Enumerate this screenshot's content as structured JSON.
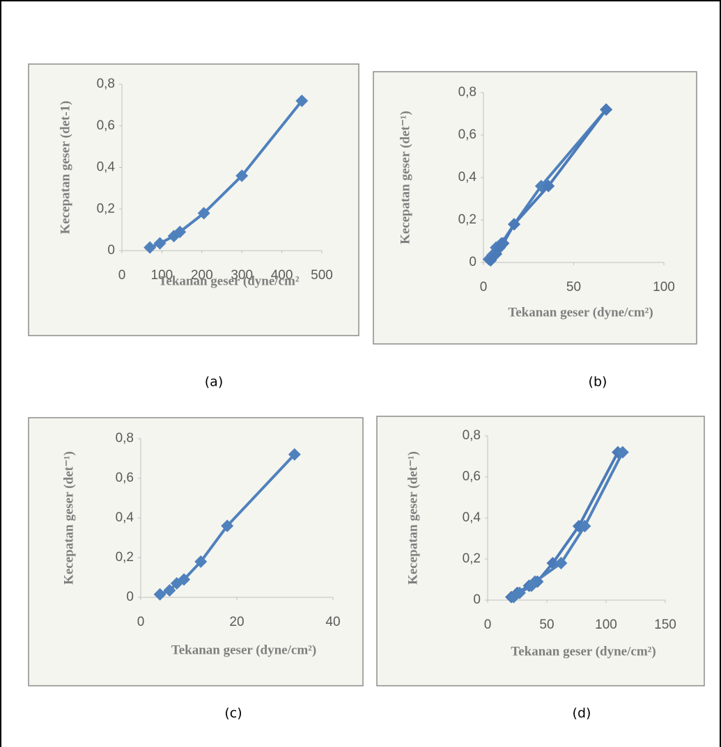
{
  "chart_data": [
    {
      "type": "line",
      "caption": "(a)",
      "x_label": "Tekanan geser (dyne/cm²",
      "y_label": "Kecepatan geser (det-1)",
      "series": [
        {
          "color": "#4f81bd",
          "x": [
            70,
            95,
            130,
            145,
            205,
            300,
            450
          ],
          "values": [
            0.015,
            0.035,
            0.07,
            0.09,
            0.18,
            0.36,
            0.72
          ]
        }
      ],
      "xlim": [
        0,
        500
      ],
      "xticks": [
        0,
        100,
        200,
        300,
        400,
        500
      ],
      "ylim": [
        0,
        0.8
      ],
      "yticks": [
        0,
        {
          "value": 0.2,
          "label": "0,2"
        },
        {
          "value": 0.4,
          "label": "0,4"
        },
        {
          "value": 0.6,
          "label": "0,6"
        },
        {
          "value": 0.8,
          "label": "0,8"
        }
      ]
    },
    {
      "type": "line",
      "caption": "(b)",
      "x_label": "Tekanan geser (dyne/cm²)",
      "y_label": "Kecepatan geser (det⁻¹)",
      "series": [
        {
          "color": "#4f81bd",
          "x": [
            3,
            5,
            7,
            10,
            17,
            32,
            68
          ],
          "values": [
            0.015,
            0.035,
            0.07,
            0.09,
            0.18,
            0.36,
            0.72
          ]
        },
        {
          "color": "#4a7ab8",
          "x": [
            4,
            7,
            9,
            11,
            17,
            36,
            68
          ],
          "values": [
            0.01,
            0.04,
            0.07,
            0.09,
            0.18,
            0.36,
            0.72
          ]
        }
      ],
      "xlim": [
        0,
        100
      ],
      "xticks": [
        0,
        50,
        100
      ],
      "ylim": [
        0,
        0.8
      ],
      "yticks": [
        0,
        {
          "value": 0.2,
          "label": "0,2"
        },
        {
          "value": 0.4,
          "label": "0,4"
        },
        {
          "value": 0.6,
          "label": "0,6"
        },
        {
          "value": 0.8,
          "label": "0,8"
        }
      ]
    },
    {
      "type": "line",
      "caption": "(c)",
      "x_label": "Tekanan geser (dyne/cm²)",
      "y_label": "Kecepatan geser (det⁻¹)",
      "series": [
        {
          "color": "#4f81bd",
          "x": [
            4,
            6,
            7.5,
            9,
            12.5,
            18,
            32
          ],
          "values": [
            0.015,
            0.035,
            0.07,
            0.09,
            0.18,
            0.36,
            0.72
          ]
        }
      ],
      "xlim": [
        0,
        40
      ],
      "xticks": [
        0,
        20,
        40
      ],
      "ylim": [
        0,
        0.8
      ],
      "yticks": [
        0,
        {
          "value": 0.2,
          "label": "0,2"
        },
        {
          "value": 0.4,
          "label": "0,4"
        },
        {
          "value": 0.6,
          "label": "0,6"
        },
        {
          "value": 0.8,
          "label": "0,8"
        }
      ]
    },
    {
      "type": "line",
      "caption": "(d)",
      "x_label": "Tekanan geser (dyne/cm²)",
      "y_label": "Kecepatan geser (det⁻¹)",
      "series": [
        {
          "color": "#4a7ab8",
          "x": [
            20,
            25,
            35,
            42,
            55,
            77,
            110
          ],
          "values": [
            0.015,
            0.035,
            0.07,
            0.09,
            0.18,
            0.36,
            0.72
          ]
        },
        {
          "color": "#4f81bd",
          "x": [
            22,
            27,
            37,
            40,
            62,
            82,
            114
          ],
          "values": [
            0.015,
            0.035,
            0.07,
            0.09,
            0.18,
            0.36,
            0.72
          ]
        }
      ],
      "xlim": [
        0,
        150
      ],
      "xticks": [
        0,
        50,
        100,
        150
      ],
      "ylim": [
        0,
        0.8
      ],
      "yticks": [
        0,
        {
          "value": 0.2,
          "label": "0,2"
        },
        {
          "value": 0.4,
          "label": "0,4"
        },
        {
          "value": 0.6,
          "label": "0,6"
        },
        {
          "value": 0.8,
          "label": "0,8"
        }
      ]
    }
  ]
}
